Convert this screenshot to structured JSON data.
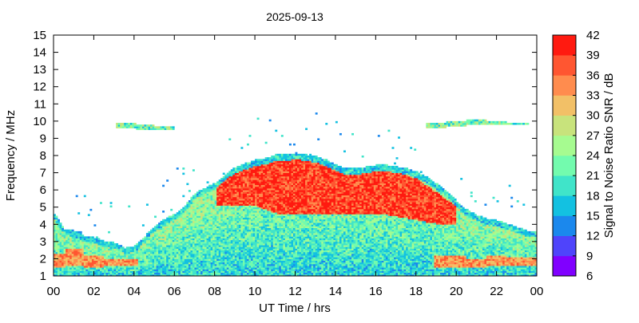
{
  "chart_data": {
    "type": "heatmap",
    "title": "2025-09-13",
    "xlabel": "UT Time / hrs",
    "ylabel": "Frequency / MHz",
    "colorbar_label": "Signal to Noise Ratio SNR / dB",
    "xlim": [
      0,
      24
    ],
    "ylim": [
      1,
      15
    ],
    "x_ticks": [
      "00",
      "02",
      "04",
      "06",
      "08",
      "10",
      "12",
      "14",
      "16",
      "18",
      "20",
      "22",
      "00"
    ],
    "y_ticks": [
      "1",
      "2",
      "3",
      "4",
      "5",
      "6",
      "7",
      "8",
      "9",
      "10",
      "11",
      "12",
      "13",
      "14",
      "15"
    ],
    "colorbar_ticks": [
      "6",
      "9",
      "12",
      "15",
      "18",
      "21",
      "24",
      "27",
      "30",
      "33",
      "36",
      "39",
      "42"
    ],
    "colorbar_range": [
      6,
      42
    ],
    "color_levels": [
      "#8000ff",
      "#4f44fb",
      "#1b88ed",
      "#13c1e1",
      "#40e4c9",
      "#73fbae",
      "#a6fb90",
      "#c8e37c",
      "#f2c067",
      "#ff8c4e",
      "#ff5631",
      "#ff1a10"
    ],
    "grid": false,
    "legend": "colorbar-right",
    "coverage_upper_mhz": [
      [
        0.0,
        4.6
      ],
      [
        0.5,
        3.7
      ],
      [
        1.0,
        3.6
      ],
      [
        1.5,
        3.3
      ],
      [
        2.0,
        3.2
      ],
      [
        2.5,
        3.0
      ],
      [
        3.0,
        2.9
      ],
      [
        3.5,
        2.6
      ],
      [
        4.0,
        2.7
      ],
      [
        4.5,
        3.3
      ],
      [
        5.0,
        3.9
      ],
      [
        5.5,
        4.3
      ],
      [
        6.0,
        4.6
      ],
      [
        6.5,
        5.1
      ],
      [
        7.0,
        5.8
      ],
      [
        7.5,
        6.1
      ],
      [
        8.0,
        6.4
      ],
      [
        8.5,
        6.9
      ],
      [
        9.0,
        7.3
      ],
      [
        9.5,
        7.5
      ],
      [
        10.0,
        7.7
      ],
      [
        10.5,
        7.8
      ],
      [
        11.0,
        8.0
      ],
      [
        11.5,
        8.0
      ],
      [
        12.0,
        8.1
      ],
      [
        12.5,
        8.0
      ],
      [
        13.0,
        7.9
      ],
      [
        13.5,
        7.7
      ],
      [
        14.0,
        7.4
      ],
      [
        14.5,
        7.2
      ],
      [
        15.0,
        7.2
      ],
      [
        15.5,
        7.3
      ],
      [
        16.0,
        7.4
      ],
      [
        16.5,
        7.4
      ],
      [
        17.0,
        7.3
      ],
      [
        17.5,
        7.2
      ],
      [
        18.0,
        7.0
      ],
      [
        18.5,
        6.7
      ],
      [
        19.0,
        6.3
      ],
      [
        19.5,
        5.9
      ],
      [
        20.0,
        5.3
      ],
      [
        20.5,
        4.8
      ],
      [
        21.0,
        4.5
      ],
      [
        21.5,
        4.3
      ],
      [
        22.0,
        4.2
      ],
      [
        22.5,
        4.0
      ],
      [
        23.0,
        3.8
      ],
      [
        23.5,
        3.6
      ],
      [
        24.0,
        3.6
      ]
    ],
    "peak_region_mhz": [
      [
        8.0,
        5.0,
        6.2
      ],
      [
        9.0,
        5.0,
        7.0
      ],
      [
        10.0,
        5.0,
        7.5
      ],
      [
        11.0,
        4.6,
        7.8
      ],
      [
        12.0,
        4.6,
        7.9
      ],
      [
        13.0,
        4.6,
        7.7
      ],
      [
        14.0,
        4.6,
        7.2
      ],
      [
        15.0,
        4.6,
        7.0
      ],
      [
        16.0,
        4.6,
        7.1
      ],
      [
        17.0,
        4.4,
        7.0
      ],
      [
        18.0,
        4.2,
        6.6
      ],
      [
        19.0,
        4.0,
        5.8
      ],
      [
        20.0,
        4.0,
        5.0
      ]
    ],
    "low_band_peak_mhz": [
      [
        0.0,
        1.5,
        2.3
      ],
      [
        1.0,
        1.6,
        2.6
      ],
      [
        2.0,
        1.5,
        2.2
      ],
      [
        3.0,
        1.6,
        2.0
      ],
      [
        20.0,
        1.5,
        2.2
      ],
      [
        21.0,
        1.5,
        2.0
      ],
      [
        22.0,
        1.6,
        2.2
      ],
      [
        23.0,
        1.6,
        2.1
      ]
    ],
    "sporadic_e_mhz": [
      [
        3.7,
        9.5,
        9.7
      ],
      [
        4.5,
        9.4,
        9.6
      ],
      [
        5.3,
        9.4,
        9.5
      ],
      [
        19.0,
        9.5,
        9.7
      ],
      [
        20.0,
        9.6,
        9.8
      ],
      [
        21.0,
        9.7,
        9.9
      ],
      [
        22.0,
        9.7,
        9.8
      ],
      [
        23.0,
        9.7,
        9.7
      ]
    ]
  }
}
